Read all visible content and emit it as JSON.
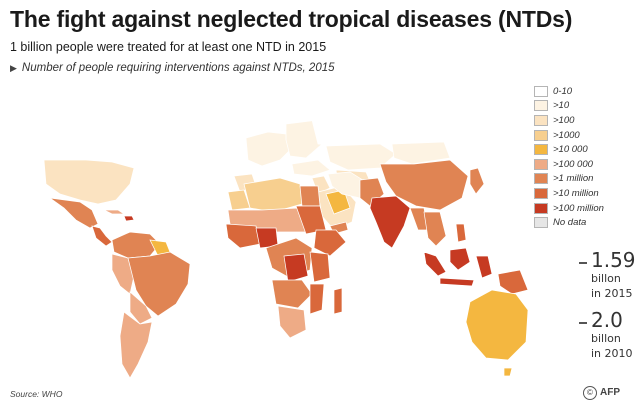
{
  "header": {
    "title": "The fight against neglected tropical diseases (NTDs)",
    "subtitle": "1 billion people were treated for at least one NTD in 2015",
    "map_note": "Number of people requiring interventions against NTDs, 2015"
  },
  "legend": {
    "items": [
      {
        "label": "0-10",
        "color": "#ffffff"
      },
      {
        "label": ">10",
        "color": "#fdf3e3"
      },
      {
        "label": ">100",
        "color": "#fbe3c1"
      },
      {
        "label": ">1000",
        "color": "#f7cf8f"
      },
      {
        "label": ">10 000",
        "color": "#f4b740"
      },
      {
        "label": ">100 000",
        "color": "#eeab86"
      },
      {
        "label": ">1 million",
        "color": "#e08453"
      },
      {
        "label": ">10 million",
        "color": "#d9683b"
      },
      {
        "label": ">100 million",
        "color": "#c63a22"
      },
      {
        "label": "No data",
        "color": "#e6e6e6"
      }
    ]
  },
  "stats": [
    {
      "value": "1.59",
      "line1": "billon",
      "line2": "in 2015"
    },
    {
      "value": "2.0",
      "line1": "billon",
      "line2": "in 2010"
    }
  ],
  "footer": {
    "source": "Source: WHO",
    "credit": "AFP",
    "copyright": "©"
  }
}
